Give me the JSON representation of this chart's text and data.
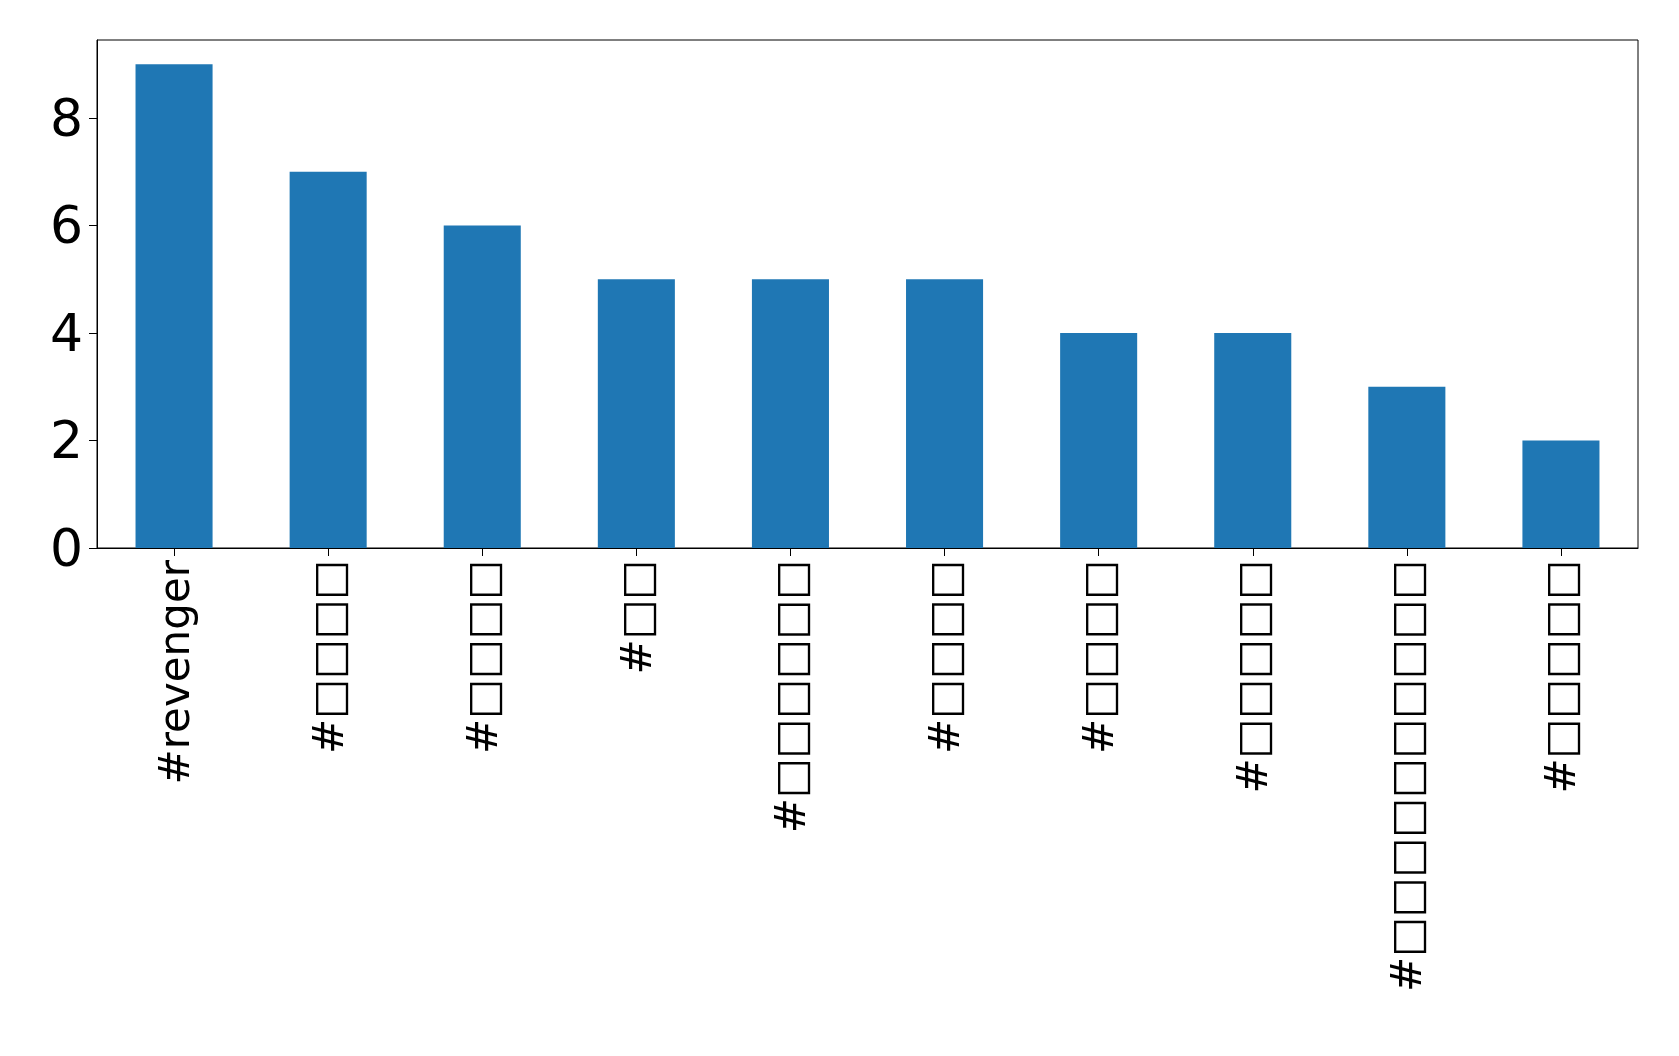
{
  "chart_data": {
    "type": "bar",
    "categories": [
      "#revenger",
      "#□□□□",
      "#□□□□",
      "#□□",
      "#□□□□□□",
      "#□□□□",
      "#□□□□",
      "#□□□□□",
      "#□□□□□□□□□□",
      "#□□□□□"
    ],
    "values": [
      9,
      7,
      6,
      5,
      5,
      5,
      4,
      4,
      3,
      2
    ],
    "color": "#1f77b4",
    "ylim": [
      0,
      9.45
    ],
    "yticks": [
      0,
      2,
      4,
      6,
      8
    ],
    "grid": false
  }
}
